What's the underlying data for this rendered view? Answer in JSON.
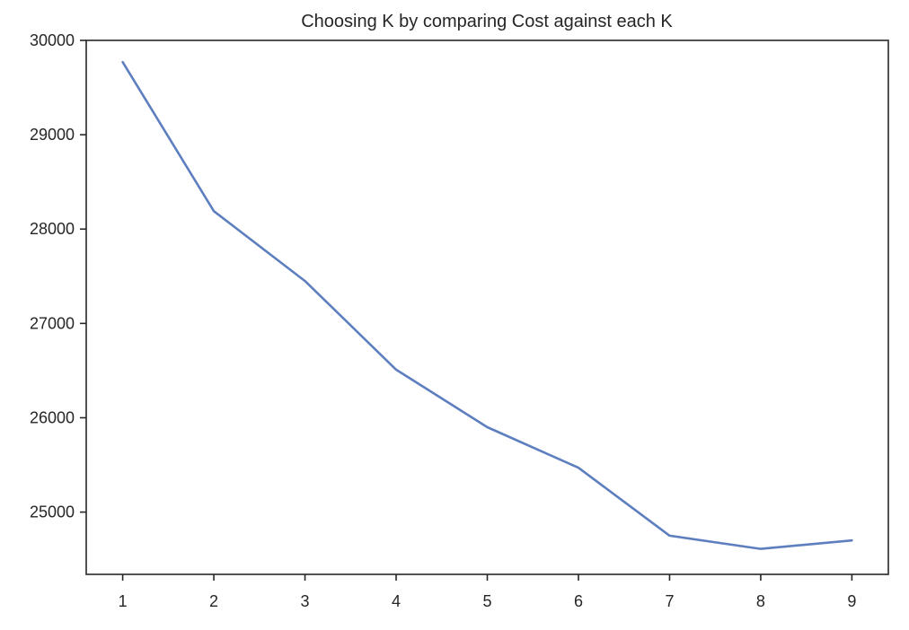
{
  "chart_data": {
    "type": "line",
    "title": "Choosing K by comparing Cost against each K",
    "xlabel": "",
    "ylabel": "",
    "x": [
      1,
      2,
      3,
      4,
      5,
      6,
      7,
      8,
      9
    ],
    "xticks": [
      "1",
      "2",
      "3",
      "4",
      "5",
      "6",
      "7",
      "8",
      "9"
    ],
    "xlim": [
      0.6,
      9.4
    ],
    "yticks": [
      "25000",
      "26000",
      "27000",
      "28000",
      "29000",
      "30000"
    ],
    "ylim": [
      24340,
      30000
    ],
    "series": [
      {
        "color": "#5e7fbf",
        "values": [
          29770,
          28190,
          27450,
          26510,
          25900,
          25470,
          24750,
          24610,
          24700
        ]
      }
    ],
    "grid": false,
    "legend": "none"
  }
}
